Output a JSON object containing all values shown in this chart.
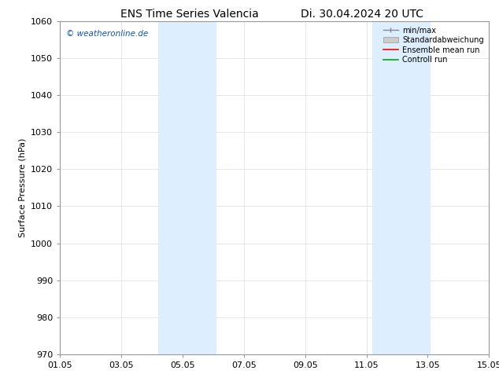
{
  "title_left": "ENS Time Series Valencia",
  "title_right": "Di. 30.04.2024 20 UTC",
  "ylabel": "Surface Pressure (hPa)",
  "ylim": [
    970,
    1060
  ],
  "yticks": [
    970,
    980,
    990,
    1000,
    1010,
    1020,
    1030,
    1040,
    1050,
    1060
  ],
  "xtick_labels": [
    "01.05",
    "03.05",
    "05.05",
    "07.05",
    "09.05",
    "11.05",
    "13.05",
    "15.05"
  ],
  "xtick_positions": [
    0,
    2,
    4,
    6,
    8,
    10,
    12,
    14
  ],
  "xlim": [
    0,
    14
  ],
  "shaded_bands": [
    {
      "start": 3.2,
      "end": 5.1
    },
    {
      "start": 10.2,
      "end": 12.1
    }
  ],
  "shade_color": "#ddeeff",
  "watermark": "© weatheronline.de",
  "watermark_color": "#1155aa",
  "legend_labels": [
    "min/max",
    "Standardabweichung",
    "Ensemble mean run",
    "Controll run"
  ],
  "background_color": "#ffffff",
  "plot_bg_color": "#ffffff",
  "grid_color": "#dddddd",
  "title_fontsize": 10,
  "axis_fontsize": 8,
  "tick_fontsize": 8
}
